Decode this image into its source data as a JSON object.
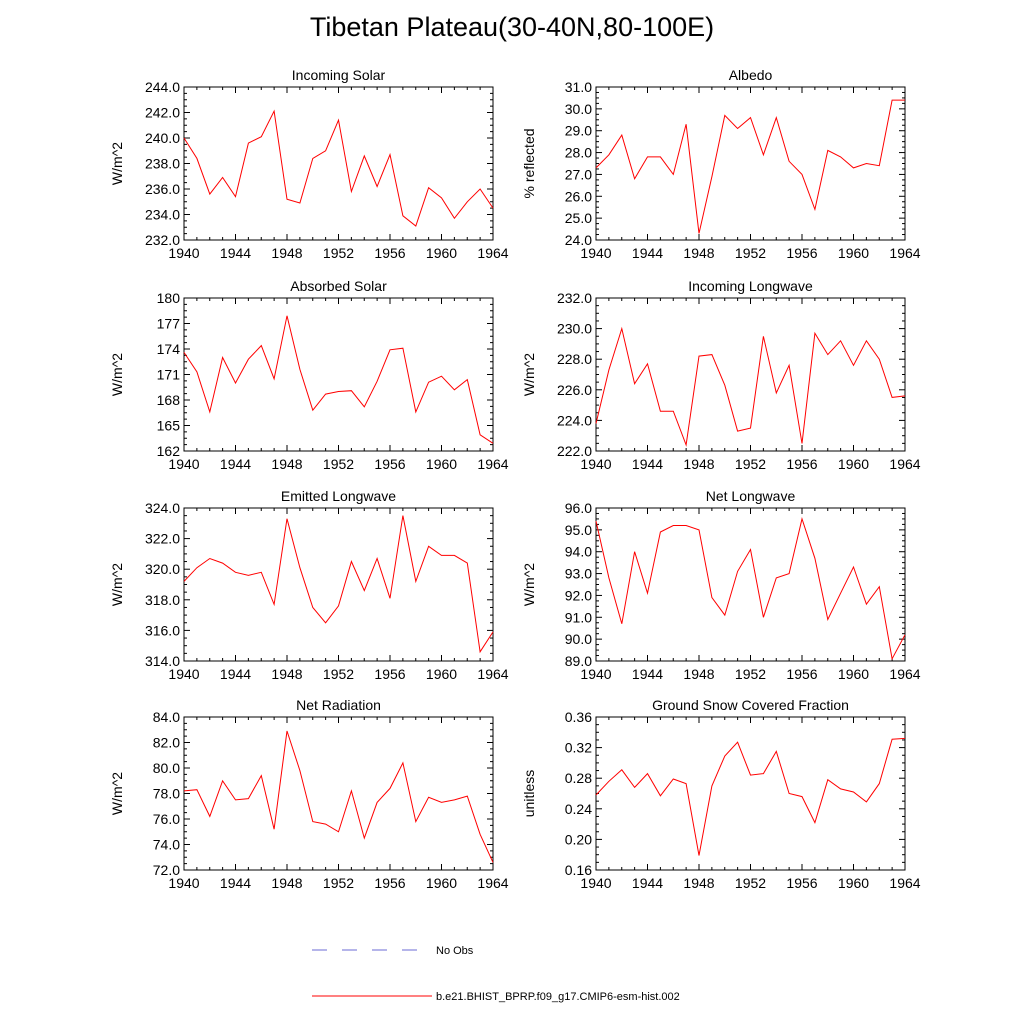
{
  "title": "Tibetan Plateau(30-40N,80-100E)",
  "colors": {
    "series": "#ff0000",
    "obs": "#6b6bd6",
    "axis": "#000000"
  },
  "legend": {
    "obs_label": "No Obs",
    "model_label": "b.e21.BHIST_BPRP.f09_g17.CMIP6-esm-hist.002"
  },
  "chart_data": [
    {
      "type": "line",
      "title": "Incoming Solar",
      "ylabel": "W/m^2",
      "ylim": [
        232.0,
        244.0
      ],
      "yticks": [
        "232.0",
        "234.0",
        "236.0",
        "238.0",
        "240.0",
        "242.0",
        "244.0"
      ],
      "xlim": [
        1940,
        1964
      ],
      "xticks": [
        "1940",
        "1944",
        "1948",
        "1952",
        "1956",
        "1960",
        "1964"
      ],
      "x": [
        1940,
        1941,
        1942,
        1943,
        1944,
        1945,
        1946,
        1947,
        1948,
        1949,
        1950,
        1951,
        1952,
        1953,
        1954,
        1955,
        1956,
        1957,
        1958,
        1959,
        1960,
        1961,
        1962,
        1963,
        1964
      ],
      "values": [
        240.0,
        238.4,
        235.6,
        236.9,
        235.4,
        239.6,
        240.1,
        242.1,
        235.2,
        234.9,
        238.4,
        239.0,
        241.4,
        235.8,
        238.6,
        236.2,
        238.7,
        233.9,
        233.1,
        236.1,
        235.3,
        233.7,
        235.0,
        236.0,
        234.5
      ]
    },
    {
      "type": "line",
      "title": "Albedo",
      "ylabel": "% reflected",
      "ylim": [
        24.0,
        31.0
      ],
      "yticks": [
        "24.0",
        "25.0",
        "26.0",
        "27.0",
        "28.0",
        "29.0",
        "30.0",
        "31.0"
      ],
      "xlim": [
        1940,
        1964
      ],
      "xticks": [
        "1940",
        "1944",
        "1948",
        "1952",
        "1956",
        "1960",
        "1964"
      ],
      "x": [
        1940,
        1941,
        1942,
        1943,
        1944,
        1945,
        1946,
        1947,
        1948,
        1949,
        1950,
        1951,
        1952,
        1953,
        1954,
        1955,
        1956,
        1957,
        1958,
        1959,
        1960,
        1961,
        1962,
        1963,
        1964
      ],
      "values": [
        27.3,
        27.9,
        28.8,
        26.8,
        27.8,
        27.8,
        27.0,
        29.3,
        24.3,
        26.9,
        29.7,
        29.1,
        29.6,
        27.9,
        29.6,
        27.6,
        27.0,
        25.4,
        28.1,
        27.8,
        27.3,
        27.5,
        27.4,
        30.4,
        30.4
      ]
    },
    {
      "type": "line",
      "title": "Absorbed Solar",
      "ylabel": "W/m^2",
      "ylim": [
        162,
        180
      ],
      "yticks": [
        "162",
        "165",
        "168",
        "171",
        "174",
        "177",
        "180"
      ],
      "xlim": [
        1940,
        1964
      ],
      "xticks": [
        "1940",
        "1944",
        "1948",
        "1952",
        "1956",
        "1960",
        "1964"
      ],
      "x": [
        1940,
        1941,
        1942,
        1943,
        1944,
        1945,
        1946,
        1947,
        1948,
        1949,
        1950,
        1951,
        1952,
        1953,
        1954,
        1955,
        1956,
        1957,
        1958,
        1959,
        1960,
        1961,
        1962,
        1963,
        1964
      ],
      "values": [
        173.6,
        171.3,
        166.6,
        173.0,
        170.0,
        172.8,
        174.4,
        170.5,
        177.9,
        171.6,
        166.8,
        168.7,
        169.0,
        169.1,
        167.2,
        170.2,
        173.9,
        174.1,
        166.6,
        170.1,
        170.8,
        169.2,
        170.4,
        163.9,
        162.9
      ]
    },
    {
      "type": "line",
      "title": "Incoming Longwave",
      "ylabel": "W/m^2",
      "ylim": [
        222.0,
        232.0
      ],
      "yticks": [
        "222.0",
        "224.0",
        "226.0",
        "228.0",
        "230.0",
        "232.0"
      ],
      "xlim": [
        1940,
        1964
      ],
      "xticks": [
        "1940",
        "1944",
        "1948",
        "1952",
        "1956",
        "1960",
        "1964"
      ],
      "x": [
        1940,
        1941,
        1942,
        1943,
        1944,
        1945,
        1946,
        1947,
        1948,
        1949,
        1950,
        1951,
        1952,
        1953,
        1954,
        1955,
        1956,
        1957,
        1958,
        1959,
        1960,
        1961,
        1962,
        1963,
        1964
      ],
      "values": [
        223.8,
        227.3,
        230.0,
        226.4,
        227.7,
        224.6,
        224.6,
        222.4,
        228.2,
        228.3,
        226.3,
        223.3,
        223.5,
        229.5,
        225.8,
        227.6,
        222.5,
        229.7,
        228.3,
        229.2,
        227.6,
        229.2,
        228.0,
        225.5,
        225.6
      ]
    },
    {
      "type": "line",
      "title": "Emitted Longwave",
      "ylabel": "W/m^2",
      "ylim": [
        314.0,
        324.0
      ],
      "yticks": [
        "314.0",
        "316.0",
        "318.0",
        "320.0",
        "322.0",
        "324.0"
      ],
      "xlim": [
        1940,
        1964
      ],
      "xticks": [
        "1940",
        "1944",
        "1948",
        "1952",
        "1956",
        "1960",
        "1964"
      ],
      "x": [
        1940,
        1941,
        1942,
        1943,
        1944,
        1945,
        1946,
        1947,
        1948,
        1949,
        1950,
        1951,
        1952,
        1953,
        1954,
        1955,
        1956,
        1957,
        1958,
        1959,
        1960,
        1961,
        1962,
        1963,
        1964
      ],
      "values": [
        319.2,
        320.1,
        320.7,
        320.4,
        319.8,
        319.6,
        319.8,
        317.7,
        323.3,
        320.1,
        317.5,
        316.5,
        317.6,
        320.5,
        318.6,
        320.7,
        318.1,
        323.5,
        319.2,
        321.5,
        320.9,
        320.9,
        320.4,
        314.6,
        315.9
      ]
    },
    {
      "type": "line",
      "title": "Net Longwave",
      "ylabel": "W/m^2",
      "ylim": [
        89.0,
        96.0
      ],
      "yticks": [
        "89.0",
        "90.0",
        "91.0",
        "92.0",
        "93.0",
        "94.0",
        "95.0",
        "96.0"
      ],
      "xlim": [
        1940,
        1964
      ],
      "xticks": [
        "1940",
        "1944",
        "1948",
        "1952",
        "1956",
        "1960",
        "1964"
      ],
      "x": [
        1940,
        1941,
        1942,
        1943,
        1944,
        1945,
        1946,
        1947,
        1948,
        1949,
        1950,
        1951,
        1952,
        1953,
        1954,
        1955,
        1956,
        1957,
        1958,
        1959,
        1960,
        1961,
        1962,
        1963,
        1964
      ],
      "values": [
        95.4,
        92.8,
        90.7,
        94.0,
        92.1,
        94.9,
        95.2,
        95.2,
        95.0,
        91.9,
        91.1,
        93.1,
        94.1,
        91.0,
        92.8,
        93.0,
        95.5,
        93.7,
        90.9,
        92.1,
        93.3,
        91.6,
        92.4,
        89.1,
        90.2
      ]
    },
    {
      "type": "line",
      "title": "Net Radiation",
      "ylabel": "W/m^2",
      "ylim": [
        72.0,
        84.0
      ],
      "yticks": [
        "72.0",
        "74.0",
        "76.0",
        "78.0",
        "80.0",
        "82.0",
        "84.0"
      ],
      "xlim": [
        1940,
        1964
      ],
      "xticks": [
        "1940",
        "1944",
        "1948",
        "1952",
        "1956",
        "1960",
        "1964"
      ],
      "x": [
        1940,
        1941,
        1942,
        1943,
        1944,
        1945,
        1946,
        1947,
        1948,
        1949,
        1950,
        1951,
        1952,
        1953,
        1954,
        1955,
        1956,
        1957,
        1958,
        1959,
        1960,
        1961,
        1962,
        1963,
        1964
      ],
      "values": [
        78.2,
        78.3,
        76.2,
        79.0,
        77.5,
        77.6,
        79.4,
        75.2,
        82.9,
        79.8,
        75.8,
        75.6,
        75.0,
        78.2,
        74.5,
        77.3,
        78.4,
        80.4,
        75.8,
        77.7,
        77.3,
        77.5,
        77.8,
        74.8,
        72.6
      ]
    },
    {
      "type": "line",
      "title": "Ground Snow Covered Fraction",
      "ylabel": "unitless",
      "ylim": [
        0.16,
        0.36
      ],
      "yticks": [
        "0.16",
        "0.20",
        "0.24",
        "0.28",
        "0.32",
        "0.36"
      ],
      "xlim": [
        1940,
        1964
      ],
      "xticks": [
        "1940",
        "1944",
        "1948",
        "1952",
        "1956",
        "1960",
        "1964"
      ],
      "x": [
        1940,
        1941,
        1942,
        1943,
        1944,
        1945,
        1946,
        1947,
        1948,
        1949,
        1950,
        1951,
        1952,
        1953,
        1954,
        1955,
        1956,
        1957,
        1958,
        1959,
        1960,
        1961,
        1962,
        1963,
        1964
      ],
      "values": [
        0.258,
        0.276,
        0.291,
        0.268,
        0.286,
        0.257,
        0.279,
        0.273,
        0.179,
        0.27,
        0.309,
        0.327,
        0.284,
        0.286,
        0.315,
        0.26,
        0.256,
        0.222,
        0.278,
        0.266,
        0.262,
        0.249,
        0.273,
        0.331,
        0.332
      ]
    }
  ]
}
